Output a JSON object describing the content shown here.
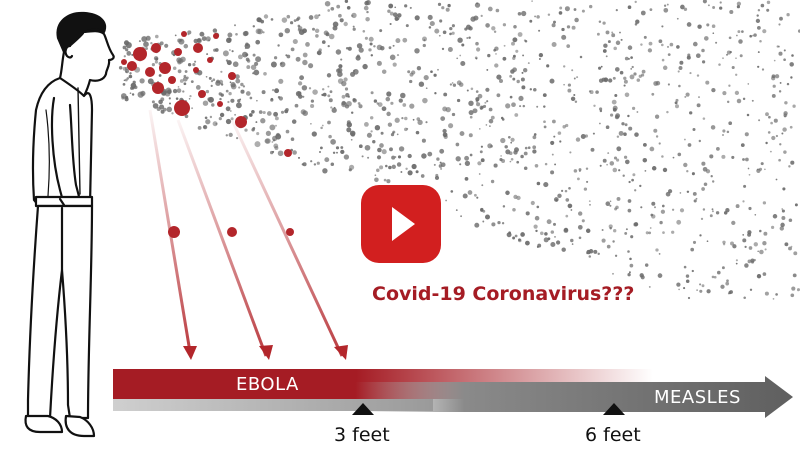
{
  "video": {
    "caption": "Covid-19 Coronavirus???",
    "play_icon": "play-icon",
    "play_color": "#d21f1f"
  },
  "scale": {
    "ebola_label": "EBOLA",
    "measles_label": "MEASLES",
    "ticks": [
      "3 feet",
      "6 feet"
    ],
    "ebola_color": "#a51c24",
    "measles_color": "#666666"
  },
  "colors": {
    "droplet_red": "#b3262b",
    "aerosol_gray": "#6b6b6b"
  }
}
